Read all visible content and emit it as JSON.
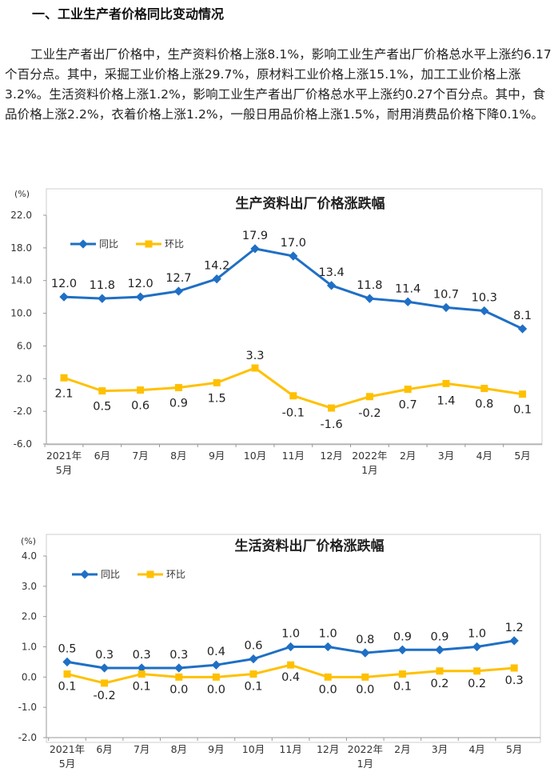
{
  "section": {
    "heading": "一、工业生产者价格同比变动情况",
    "paragraph": "工业生产者出厂价格中，生产资料价格上涨8.1%，影响工业生产者出厂价格总水平上涨约6.17个百分点。其中，采掘工业价格上涨29.7%，原材料工业价格上涨15.1%，加工工业价格上涨3.2%。生活资料价格上涨1.2%，影响工业生产者出厂价格总水平上涨约0.27个百分点。其中，食品价格上涨2.2%，衣着价格上涨1.2%，一般日用品价格上涨1.5%，耐用消费品价格下降0.1%。"
  },
  "colors": {
    "yoy": "#1f6fc5",
    "mom": "#ffc000",
    "grid": "#e6e6e6",
    "axis": "#999999"
  },
  "chart_data": [
    {
      "type": "line",
      "title": "生产资料出厂价格涨跌幅",
      "unit": "(%)",
      "categories": [
        "2021年\n5月",
        "6月",
        "7月",
        "8月",
        "9月",
        "10月",
        "11月",
        "12月",
        "2022年\n1月",
        "2月",
        "3月",
        "4月",
        "5月"
      ],
      "ylim": [
        -6.0,
        22.0
      ],
      "yticks": [
        "22.0",
        "18.0",
        "14.0",
        "10.0",
        "6.0",
        "2.0",
        "-2.0",
        "-6.0"
      ],
      "grid": false,
      "legend": "top-left",
      "series": [
        {
          "name": "同比",
          "values": [
            12.0,
            11.8,
            12.0,
            12.7,
            14.2,
            17.9,
            17.0,
            13.4,
            11.8,
            11.4,
            10.7,
            10.3,
            8.1
          ],
          "labels": [
            "12.0",
            "11.8",
            "12.0",
            "12.7",
            "14.2",
            "17.9",
            "17.0",
            "13.4",
            "11.8",
            "11.4",
            "10.7",
            "10.3",
            "8.1"
          ]
        },
        {
          "name": "环比",
          "values": [
            2.1,
            0.5,
            0.6,
            0.9,
            1.5,
            3.3,
            -0.1,
            -1.6,
            -0.2,
            0.7,
            1.4,
            0.8,
            0.1
          ],
          "labels": [
            "2.1",
            "0.5",
            "0.6",
            "0.9",
            "1.5",
            "3.3",
            "-0.1",
            "-1.6",
            "-0.2",
            "0.7",
            "1.4",
            "0.8",
            "0.1"
          ]
        }
      ]
    },
    {
      "type": "line",
      "title": "生活资料出厂价格涨跌幅",
      "unit": "(%)",
      "categories": [
        "2021年\n5月",
        "6月",
        "7月",
        "8月",
        "9月",
        "10月",
        "11月",
        "12月",
        "2022年\n1月",
        "2月",
        "3月",
        "4月",
        "5月"
      ],
      "ylim": [
        -2.0,
        4.0
      ],
      "yticks": [
        "4.0",
        "3.0",
        "2.0",
        "1.0",
        "0.0",
        "-1.0",
        "-2.0"
      ],
      "grid": false,
      "legend": "top-left",
      "series": [
        {
          "name": "同比",
          "values": [
            0.5,
            0.3,
            0.3,
            0.3,
            0.4,
            0.6,
            1.0,
            1.0,
            0.8,
            0.9,
            0.9,
            1.0,
            1.2
          ],
          "labels": [
            "0.5",
            "0.3",
            "0.3",
            "0.3",
            "0.4",
            "0.6",
            "1.0",
            "1.0",
            "0.8",
            "0.9",
            "0.9",
            "1.0",
            "1.2"
          ]
        },
        {
          "name": "环比",
          "values": [
            0.1,
            -0.2,
            0.1,
            0.0,
            0.0,
            0.1,
            0.4,
            0.0,
            0.0,
            0.1,
            0.2,
            0.2,
            0.3
          ],
          "labels": [
            "0.1",
            "-0.2",
            "0.1",
            "0.0",
            "0.0",
            "0.1",
            "0.4",
            "0.0",
            "0.0",
            "0.1",
            "0.2",
            "0.2",
            "0.3"
          ]
        }
      ]
    }
  ]
}
